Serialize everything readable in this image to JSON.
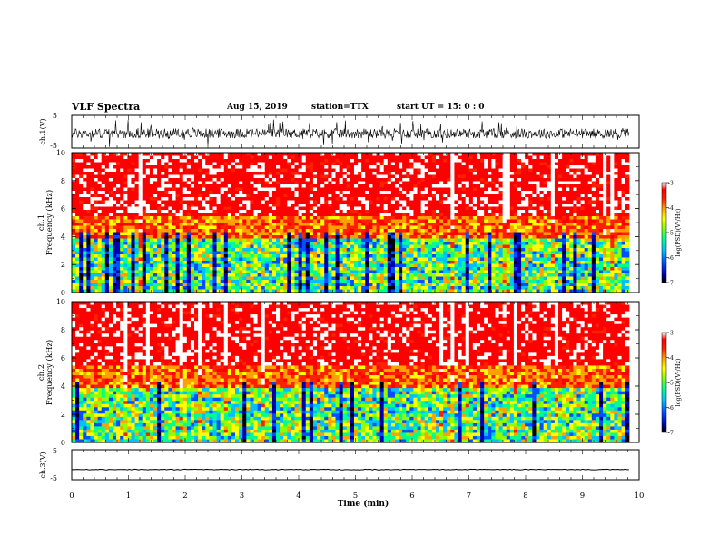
{
  "header": {
    "title": "VLF Spectra",
    "date": "Aug 15, 2019",
    "station": "station=TTX",
    "start": "start UT =  15: 0  : 0"
  },
  "chart_data": [
    {
      "type": "line",
      "panel": "ch1-waveform",
      "ylabel": "ch.1(V)",
      "yticks": [
        "5",
        "-5"
      ],
      "ylim": [
        -5,
        5
      ],
      "xlim": [
        0,
        10
      ],
      "description_values": {
        "baseline": -0.5,
        "typical_amplitude": 1.5,
        "spike_amplitude": 4.5
      }
    },
    {
      "type": "heatmap",
      "panel": "ch1-spectrogram",
      "ylabel_line1": "ch.1",
      "ylabel_line2": "Frequency (kHz)",
      "yticks": [
        "0",
        "2",
        "4",
        "6",
        "8",
        "10"
      ],
      "ylim": [
        0,
        10
      ],
      "xlim": [
        0,
        10
      ],
      "colorbar": {
        "label": "log(PSD)(V²/Hz)",
        "ticks": [
          "-3",
          "-4",
          "-5",
          "-6",
          "-7"
        ],
        "range": [
          -7,
          -3
        ]
      }
    },
    {
      "type": "heatmap",
      "panel": "ch2-spectrogram",
      "ylabel_line1": "ch.2",
      "ylabel_line2": "Frequency (kHz)",
      "yticks": [
        "0",
        "2",
        "4",
        "6",
        "8",
        "10"
      ],
      "ylim": [
        0,
        10
      ],
      "xlim": [
        0,
        10
      ],
      "colorbar": {
        "label": "log(PSD)(V²/Hz)",
        "ticks": [
          "-3",
          "-4",
          "-5",
          "-6",
          "-7"
        ],
        "range": [
          -7,
          -3
        ]
      }
    },
    {
      "type": "line",
      "panel": "ch3-waveform",
      "ylabel": "ch.3(V)",
      "yticks": [
        "5",
        "-5"
      ],
      "ylim": [
        -5,
        5
      ],
      "xlim": [
        0,
        10
      ],
      "description_values": {
        "baseline": -1.6
      }
    }
  ],
  "xaxis": {
    "label": "Time (min)",
    "ticks": [
      "0",
      "1",
      "2",
      "3",
      "4",
      "5",
      "6",
      "7",
      "8",
      "9",
      "10"
    ],
    "range": [
      0,
      10
    ],
    "data_end": 9.82
  },
  "colors": {
    "colormap": [
      "#000000",
      "#0000b0",
      "#0050ff",
      "#00c0ff",
      "#00ff90",
      "#90ff00",
      "#ffff00",
      "#ffa000",
      "#ff2000",
      "#ff0000",
      "#ffffff"
    ]
  }
}
